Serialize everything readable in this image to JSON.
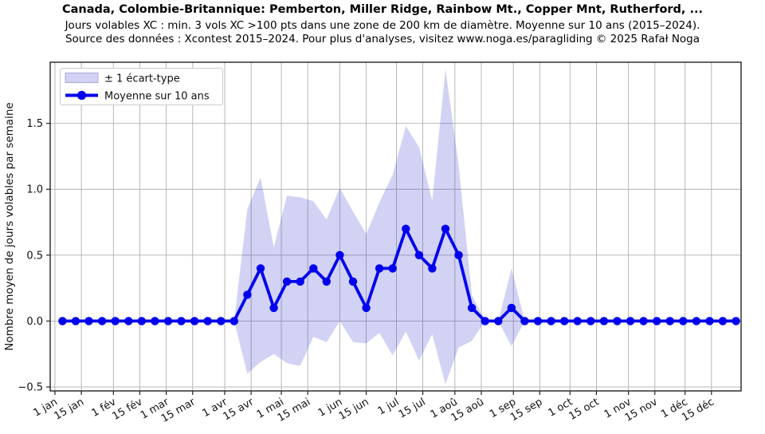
{
  "header": {
    "title": "Canada, Colombie-Britannique: Pemberton, Miller Ridge, Rainbow Mt., Copper Mnt, Rutherford, ...",
    "subtitle1": "Jours volables XC : min. 3 vols XC >100 pts dans une zone de 200 km de diamètre. Moyenne sur 10 ans (2015–2024).",
    "subtitle2": "Source des données : Xcontest 2015–2024. Pour plus d'analyses, visitez www.noga.es/paragliding © 2025 Rafał Noga"
  },
  "chart_data": {
    "type": "line",
    "title": "Canada, Colombie-Britannique: Pemberton, Miller Ridge, Rainbow Mt., Copper Mnt, Rutherford, ...",
    "ylabel": "Nombre moyen de jours volables par semaine",
    "xlabel": "",
    "grid": true,
    "legend_position": "upper-left",
    "legend": {
      "band_label": "± 1 écart-type",
      "line_label": "Moyenne sur 10 ans"
    },
    "colors": {
      "line": "#0000ee",
      "band_fill": "#3333cc",
      "band_opacity": 0.22,
      "band_edge": "#a8a8d8",
      "grid": "#b0b0b0",
      "axis": "#222222"
    },
    "ylim": [
      -0.53,
      1.964
    ],
    "xlim_days": [
      -1.5,
      364.7
    ],
    "y_ticks": [
      {
        "label": "−0.5",
        "value": -0.5
      },
      {
        "label": "0.0",
        "value": 0.0
      },
      {
        "label": "0.5",
        "value": 0.5
      },
      {
        "label": "1.0",
        "value": 1.0
      },
      {
        "label": "1.5",
        "value": 1.5
      }
    ],
    "x_ticks": [
      {
        "label": "1 jan",
        "day": 1
      },
      {
        "label": "15 jan",
        "day": 15
      },
      {
        "label": "1 fév",
        "day": 32
      },
      {
        "label": "15 fév",
        "day": 46
      },
      {
        "label": "1 mar",
        "day": 60
      },
      {
        "label": "15 mar",
        "day": 74
      },
      {
        "label": "1 avr",
        "day": 91
      },
      {
        "label": "15 avr",
        "day": 105
      },
      {
        "label": "1 mai",
        "day": 121
      },
      {
        "label": "15 mai",
        "day": 135
      },
      {
        "label": "1 jun",
        "day": 152
      },
      {
        "label": "15 jun",
        "day": 166
      },
      {
        "label": "1 jul",
        "day": 182
      },
      {
        "label": "15 jul",
        "day": 196
      },
      {
        "label": "1 aoû",
        "day": 213
      },
      {
        "label": "15 aoû",
        "day": 227
      },
      {
        "label": "1 sep",
        "day": 244
      },
      {
        "label": "15 sep",
        "day": 258
      },
      {
        "label": "1 oct",
        "day": 274
      },
      {
        "label": "15 oct",
        "day": 288
      },
      {
        "label": "1 nov",
        "day": 305
      },
      {
        "label": "15 nov",
        "day": 319
      },
      {
        "label": "1 déc",
        "day": 335
      },
      {
        "label": "15 déc",
        "day": 349
      }
    ],
    "weeks": {
      "count": 52,
      "first_day_of_year": 5,
      "step_days": 7
    },
    "mean": [
      0,
      0,
      0,
      0,
      0,
      0,
      0,
      0,
      0,
      0,
      0,
      0,
      0,
      0,
      0.2,
      0.4,
      0.1,
      0.3,
      0.3,
      0.4,
      0.3,
      0.5,
      0.3,
      0.1,
      0.4,
      0.4,
      0.7,
      0.5,
      0.4,
      0.7,
      0.5,
      0.1,
      0,
      0,
      0.1,
      0,
      0,
      0,
      0,
      0,
      0,
      0,
      0,
      0,
      0,
      0,
      0,
      0,
      0,
      0,
      0,
      0
    ],
    "band_upper": [
      0,
      0,
      0,
      0,
      0,
      0,
      0,
      0,
      0,
      0,
      0,
      0,
      0,
      0,
      0.85,
      1.09,
      0.56,
      0.95,
      0.94,
      0.91,
      0.77,
      1.01,
      0.83,
      0.66,
      0.9,
      1.11,
      1.48,
      1.32,
      0.91,
      1.91,
      1.18,
      0.2,
      0,
      0,
      0.4,
      0,
      0,
      0,
      0,
      0,
      0,
      0,
      0,
      0,
      0,
      0,
      0,
      0,
      0,
      0,
      0,
      0
    ],
    "band_lower": [
      0,
      0,
      0,
      0,
      0,
      0,
      0,
      0,
      0,
      0,
      0,
      0,
      0,
      0,
      -0.4,
      -0.31,
      -0.25,
      -0.32,
      -0.34,
      -0.12,
      -0.16,
      0.0,
      -0.16,
      -0.17,
      -0.09,
      -0.26,
      -0.08,
      -0.3,
      -0.1,
      -0.48,
      -0.2,
      -0.15,
      0,
      0,
      -0.19,
      0,
      0,
      0,
      0,
      0,
      0,
      0,
      0,
      0,
      0,
      0,
      0,
      0,
      0,
      0,
      0,
      0
    ]
  }
}
